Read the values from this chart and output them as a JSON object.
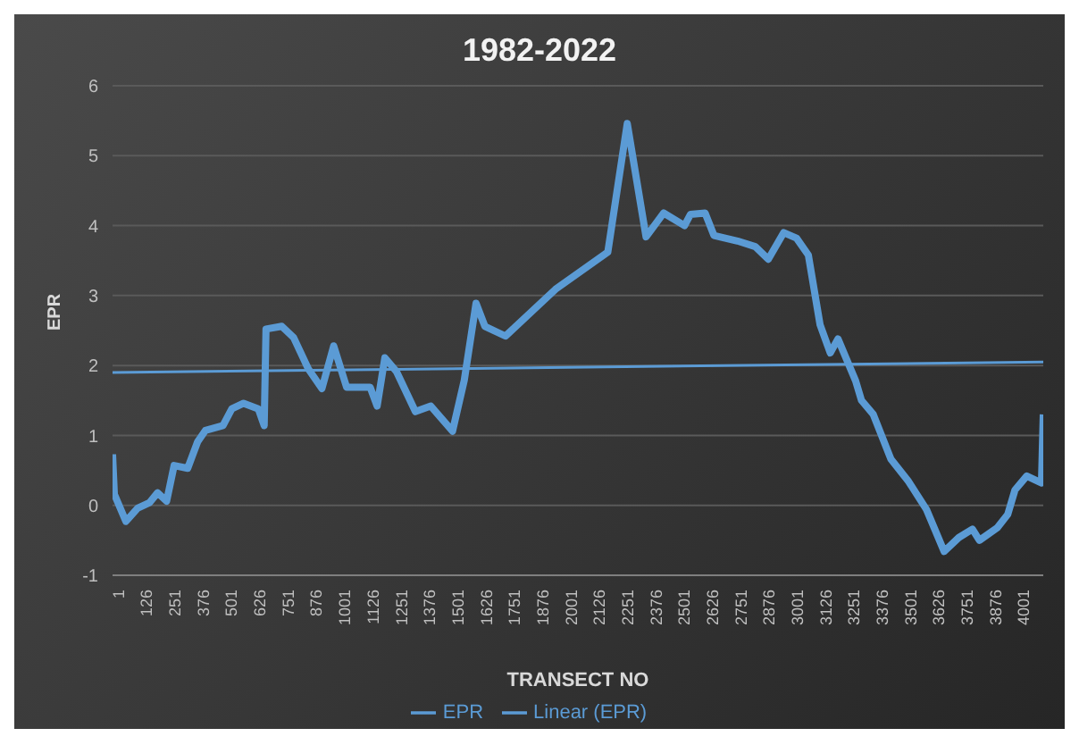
{
  "chart_data": {
    "type": "line",
    "title": "1982-2022",
    "xlabel": "TRANSECT NO",
    "ylabel": "EPR",
    "xlim": [
      1,
      4113
    ],
    "xticks": [
      1,
      126,
      251,
      376,
      501,
      626,
      751,
      876,
      1001,
      1126,
      1251,
      1376,
      1501,
      1626,
      1751,
      1876,
      2001,
      2126,
      2251,
      2376,
      2501,
      2626,
      2751,
      2876,
      3001,
      3126,
      3251,
      3376,
      3501,
      3626,
      3751,
      3876,
      4001
    ],
    "ylim": [
      -1,
      6
    ],
    "yticks": [
      -1,
      0,
      1,
      2,
      3,
      4,
      5,
      6
    ],
    "grid": "y",
    "legend": "bottom",
    "marker": "none",
    "line_style": "solid",
    "series": [
      {
        "name": "EPR",
        "color": "#5b9bd5",
        "x": [
          1,
          9,
          60,
          112,
          165,
          200,
          240,
          273,
          333,
          377,
          411,
          489,
          528,
          580,
          645,
          671,
          679,
          749,
          801,
          866,
          926,
          978,
          1035,
          1139,
          1170,
          1204,
          1256,
          1339,
          1407,
          1503,
          1555,
          1607,
          1646,
          1737,
          1958,
          2189,
          2275,
          2358,
          2436,
          2528,
          2554,
          2619,
          2658,
          2762,
          2841,
          2898,
          2966,
          3023,
          3075,
          3127,
          3172,
          3206,
          3284,
          3310,
          3362,
          3440,
          3518,
          3597,
          3675,
          3740,
          3800,
          3831,
          3910,
          3956,
          3988,
          4040,
          4105,
          4113
        ],
        "values": [
          0.73,
          0.16,
          -0.23,
          -0.04,
          0.04,
          0.18,
          0.06,
          0.57,
          0.53,
          0.91,
          1.07,
          1.14,
          1.38,
          1.46,
          1.38,
          1.14,
          2.52,
          2.56,
          2.4,
          1.95,
          1.67,
          2.28,
          1.69,
          1.69,
          1.42,
          2.11,
          1.91,
          1.34,
          1.42,
          1.06,
          1.79,
          2.89,
          2.56,
          2.42,
          3.09,
          3.62,
          5.46,
          3.84,
          4.18,
          4.0,
          4.16,
          4.18,
          3.86,
          3.78,
          3.7,
          3.52,
          3.9,
          3.82,
          3.58,
          2.58,
          2.18,
          2.38,
          1.78,
          1.5,
          1.3,
          0.66,
          0.34,
          -0.06,
          -0.66,
          -0.46,
          -0.34,
          -0.5,
          -0.32,
          -0.13,
          0.22,
          0.42,
          0.32,
          1.3
        ]
      },
      {
        "name": "Linear (EPR)",
        "type": "line",
        "color": "#5b9bd5",
        "x": [
          1,
          4113
        ],
        "values": [
          1.9,
          2.05
        ]
      }
    ]
  }
}
